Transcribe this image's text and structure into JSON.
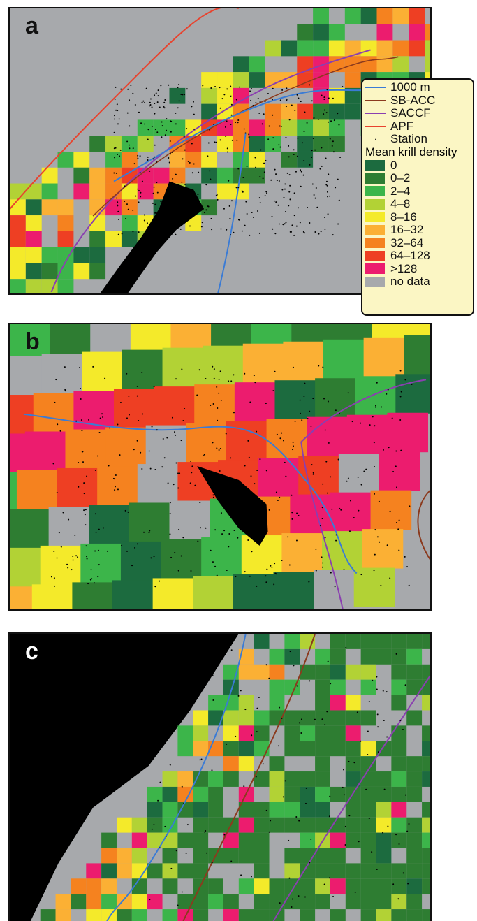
{
  "panels": [
    {
      "label": "a"
    },
    {
      "label": "b"
    },
    {
      "label": "c"
    }
  ],
  "legend": {
    "lines": [
      {
        "label": "1000 m",
        "color": "#3a7bd5"
      },
      {
        "label": "SB-ACC",
        "color": "#8b3a1e"
      },
      {
        "label": "SACCF",
        "color": "#8a3fb0"
      },
      {
        "label": "APF",
        "color": "#e8432e"
      }
    ],
    "station_label": "Station",
    "density_title": "Mean krill density",
    "classes": [
      {
        "label": "0",
        "color": "#1c6b3f"
      },
      {
        "label": "0–2",
        "color": "#2e7d32"
      },
      {
        "label": "2–4",
        "color": "#3cb54a"
      },
      {
        "label": "4–8",
        "color": "#b2d235"
      },
      {
        "label": "8–16",
        "color": "#f4ea2a"
      },
      {
        "label": "16–32",
        "color": "#fbb034"
      },
      {
        "label": "32–64",
        "color": "#f5821f"
      },
      {
        "label": "64–128",
        "color": "#ee3f23"
      },
      {
        "label": ">128",
        "color": "#ec1c6e"
      },
      {
        "label": "no data",
        "color": "#a7a9ac"
      }
    ]
  }
}
